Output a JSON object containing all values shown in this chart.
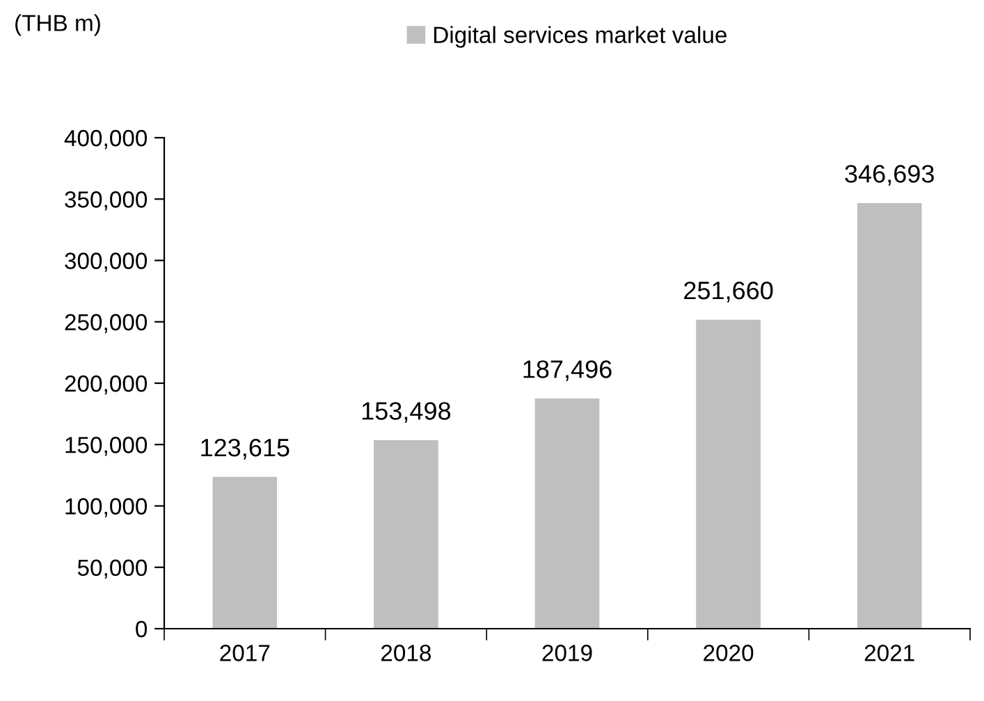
{
  "chart_data": {
    "type": "bar",
    "ylabel": "(THB m)",
    "categories": [
      "2017",
      "2018",
      "2019",
      "2020",
      "2021"
    ],
    "series": [
      {
        "name": "Digital services market value",
        "color": "#bfbfbf",
        "values": [
          123615,
          153498,
          187496,
          251660,
          346693
        ]
      }
    ],
    "value_labels": [
      "123,615",
      "153,498",
      "187,496",
      "251,660",
      "346,693"
    ],
    "ylim": [
      0,
      400000
    ],
    "yticks": [
      {
        "value": 0,
        "label": "0"
      },
      {
        "value": 50000,
        "label": "50,000"
      },
      {
        "value": 100000,
        "label": "100,000"
      },
      {
        "value": 150000,
        "label": "150,000"
      },
      {
        "value": 200000,
        "label": "200,000"
      },
      {
        "value": 250000,
        "label": "250,000"
      },
      {
        "value": 300000,
        "label": "300,000"
      },
      {
        "value": 350000,
        "label": "350,000"
      },
      {
        "value": 400000,
        "label": "400,000"
      }
    ],
    "grid": false,
    "legend": "top"
  }
}
